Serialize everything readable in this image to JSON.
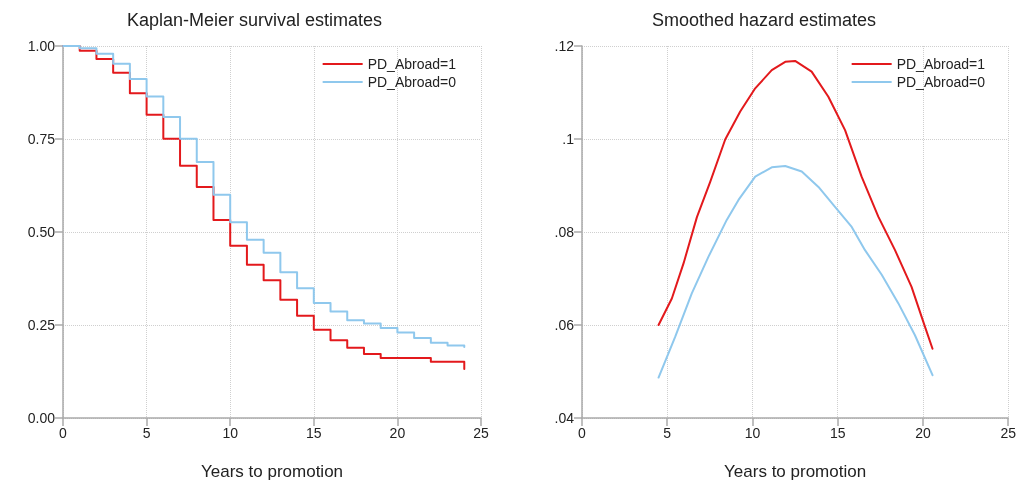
{
  "chart_data": [
    {
      "type": "step",
      "title": "Kaplan-Meier survival estimates",
      "xlabel": "Years to promotion",
      "xlim": [
        0,
        25
      ],
      "xticks": [
        0,
        5,
        10,
        15,
        20,
        25
      ],
      "ylim": [
        0,
        1
      ],
      "yticks": [
        {
          "value": 0,
          "label": "0.00"
        },
        {
          "value": 0.25,
          "label": "0.25"
        },
        {
          "value": 0.5,
          "label": "0.50"
        },
        {
          "value": 0.75,
          "label": "0.75"
        },
        {
          "value": 1,
          "label": "1.00"
        }
      ],
      "grid": true,
      "legend": "top right",
      "marker": "none",
      "line_style": "solid",
      "series": [
        {
          "name": "PD_Abroad=1",
          "color": "#e3191c",
          "x": [
            0,
            1,
            2,
            3,
            4,
            5,
            6,
            7,
            8,
            9,
            10,
            11,
            12,
            13,
            14,
            15,
            16,
            17,
            18,
            19,
            20,
            21,
            22,
            23,
            24
          ],
          "values": [
            1.0,
            0.987,
            0.965,
            0.928,
            0.873,
            0.815,
            0.751,
            0.678,
            0.621,
            0.532,
            0.463,
            0.412,
            0.37,
            0.318,
            0.275,
            0.237,
            0.209,
            0.189,
            0.172,
            0.161,
            0.161,
            0.161,
            0.151,
            0.151,
            0.132
          ]
        },
        {
          "name": "PD_Abroad=0",
          "color": "#8fc8ed",
          "x": [
            0,
            1,
            2,
            3,
            4,
            5,
            6,
            7,
            8,
            9,
            10,
            11,
            12,
            13,
            14,
            15,
            16,
            17,
            18,
            19,
            20,
            21,
            22,
            23,
            24
          ],
          "values": [
            1.0,
            0.994,
            0.979,
            0.952,
            0.911,
            0.864,
            0.809,
            0.751,
            0.688,
            0.6,
            0.526,
            0.479,
            0.444,
            0.392,
            0.349,
            0.309,
            0.286,
            0.263,
            0.254,
            0.242,
            0.23,
            0.215,
            0.202,
            0.195,
            0.191
          ]
        }
      ]
    },
    {
      "type": "line",
      "title": "Smoothed hazard estimates",
      "xlabel": "Years to promotion",
      "xlim": [
        0,
        25
      ],
      "xticks": [
        0,
        5,
        10,
        15,
        20,
        25
      ],
      "ylim": [
        0.04,
        0.12
      ],
      "yticks": [
        {
          "value": 0.04,
          "label": ".04"
        },
        {
          "value": 0.06,
          "label": ".06"
        },
        {
          "value": 0.08,
          "label": ".08"
        },
        {
          "value": 0.1,
          "label": ".1"
        },
        {
          "value": 0.12,
          "label": ".12"
        }
      ],
      "grid": true,
      "legend": "top right",
      "marker": "none",
      "line_style": "solid",
      "series": [
        {
          "name": "PD_Abroad=1",
          "color": "#e3191c",
          "x": [
            4.49,
            5.27,
            5.96,
            6.74,
            7.52,
            8.4,
            9.28,
            10.16,
            11.13,
            11.92,
            12.5,
            13.47,
            14.45,
            15.43,
            16.4,
            17.38,
            18.36,
            19.33,
            20.12,
            20.56
          ],
          "values": [
            0.06,
            0.0657,
            0.0733,
            0.0832,
            0.0908,
            0.0999,
            0.1059,
            0.1109,
            0.1148,
            0.1166,
            0.1168,
            0.1145,
            0.1091,
            0.1019,
            0.0919,
            0.0833,
            0.0761,
            0.0682,
            0.0596,
            0.0549
          ]
        },
        {
          "name": "PD_Abroad=0",
          "color": "#8fc8ed",
          "x": [
            4.49,
            5.47,
            6.44,
            7.42,
            8.49,
            9.18,
            10.16,
            11.13,
            11.92,
            12.89,
            13.87,
            14.84,
            15.82,
            16.6,
            17.58,
            18.55,
            19.53,
            20.56
          ],
          "values": [
            0.0487,
            0.0575,
            0.0668,
            0.0747,
            0.0826,
            0.0869,
            0.0919,
            0.0939,
            0.0942,
            0.093,
            0.0897,
            0.0854,
            0.0811,
            0.0761,
            0.0708,
            0.0647,
            0.0578,
            0.0492
          ]
        }
      ]
    }
  ]
}
